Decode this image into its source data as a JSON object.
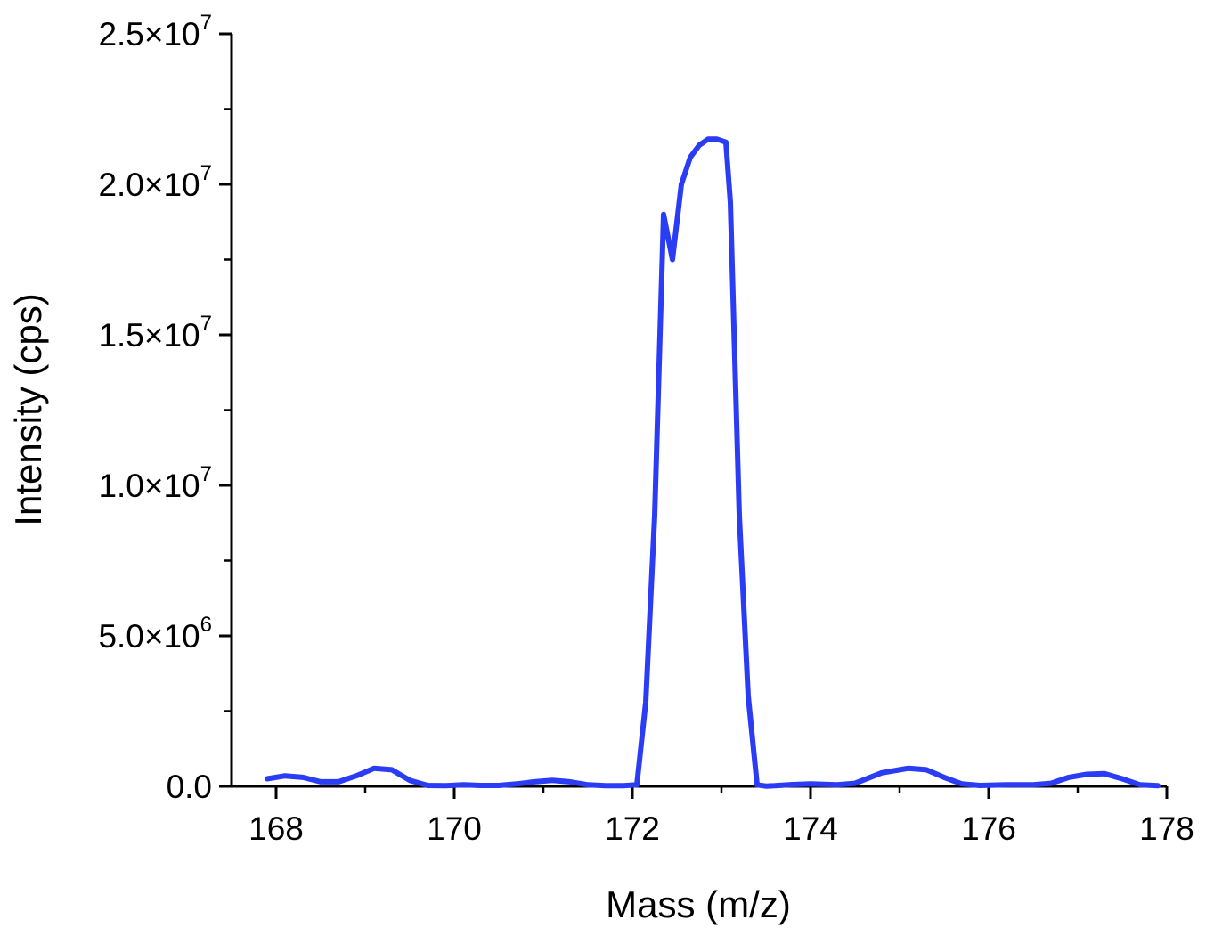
{
  "chart_data": {
    "type": "line",
    "title": "",
    "xlabel": "Mass (m/z)",
    "ylabel": "Intensity (cps)",
    "xlim": [
      167.5,
      178
    ],
    "ylim": [
      0,
      25000000
    ],
    "x_ticks": [
      168,
      170,
      172,
      174,
      176,
      178
    ],
    "x_minor_step": 1,
    "y_ticks": [
      {
        "value": 0,
        "mantissa": "0.0",
        "exponent": ""
      },
      {
        "value": 5000000,
        "mantissa": "5.0×10",
        "exponent": "6"
      },
      {
        "value": 10000000,
        "mantissa": "1.0×10",
        "exponent": "7"
      },
      {
        "value": 15000000,
        "mantissa": "1.5×10",
        "exponent": "7"
      },
      {
        "value": 20000000,
        "mantissa": "2.0×10",
        "exponent": "7"
      },
      {
        "value": 25000000,
        "mantissa": "2.5×10",
        "exponent": "7"
      }
    ],
    "y_minor_step": 2500000,
    "grid": false,
    "legend": "none",
    "series": [
      {
        "color": "#2b3cf5",
        "x": [
          167.9,
          168.1,
          168.3,
          168.5,
          168.7,
          168.9,
          169.1,
          169.3,
          169.5,
          169.7,
          169.9,
          170.1,
          170.3,
          170.5,
          170.7,
          170.9,
          171.1,
          171.3,
          171.5,
          171.7,
          171.9,
          172.05,
          172.15,
          172.25,
          172.35,
          172.45,
          172.55,
          172.65,
          172.75,
          172.85,
          172.95,
          173.05,
          173.1,
          173.2,
          173.3,
          173.4,
          173.5,
          173.6,
          173.8,
          174.0,
          174.3,
          174.5,
          174.8,
          175.1,
          175.3,
          175.5,
          175.7,
          175.9,
          176.2,
          176.5,
          176.7,
          176.9,
          177.1,
          177.3,
          177.5,
          177.7,
          177.9
        ],
        "y": [
          250000,
          350000,
          300000,
          150000,
          150000,
          350000,
          600000,
          550000,
          200000,
          30000,
          20000,
          50000,
          30000,
          30000,
          80000,
          150000,
          200000,
          150000,
          50000,
          20000,
          20000,
          50000,
          2800000,
          9000000,
          19000000,
          17500000,
          20000000,
          20900000,
          21300000,
          21500000,
          21500000,
          21400000,
          19400000,
          9000000,
          3000000,
          50000,
          10000,
          20000,
          60000,
          80000,
          50000,
          100000,
          450000,
          600000,
          550000,
          300000,
          80000,
          30000,
          50000,
          50000,
          100000,
          300000,
          400000,
          420000,
          250000,
          50000,
          20000
        ]
      }
    ]
  }
}
